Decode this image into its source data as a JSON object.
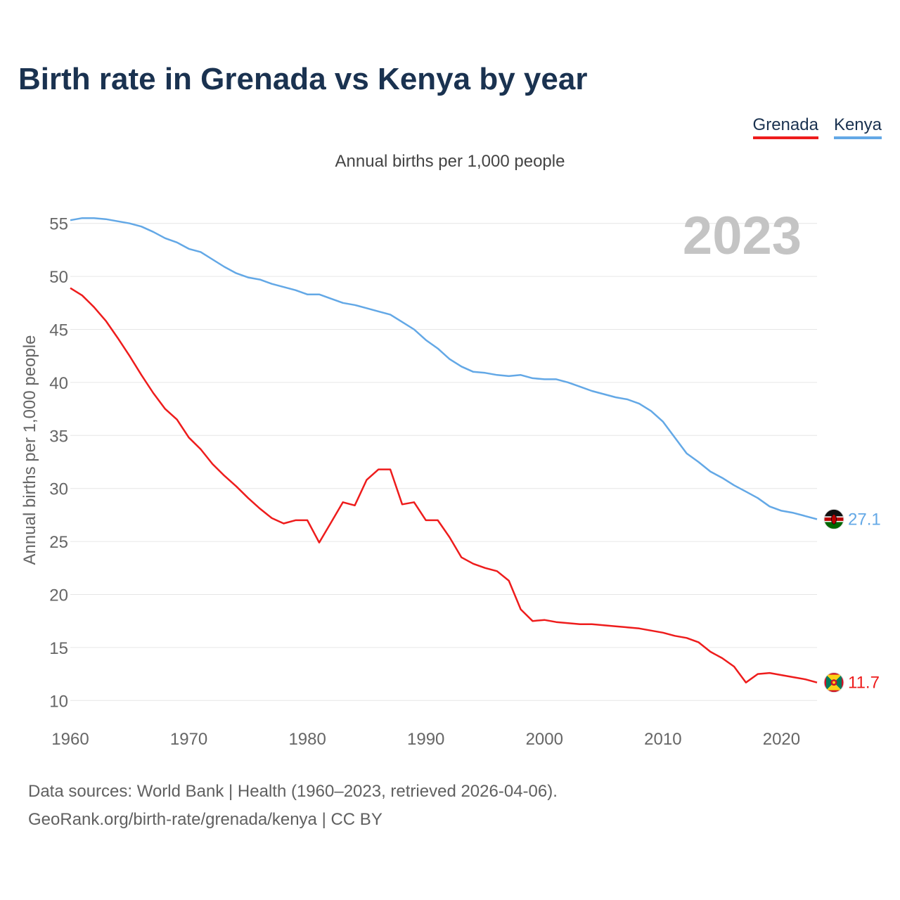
{
  "title": "Birth rate in Grenada vs Kenya by year",
  "subtitle": "Annual births per 1,000 people",
  "legend": [
    {
      "name": "Grenada",
      "color": "#ee1c1c"
    },
    {
      "name": "Kenya",
      "color": "#63a8e6"
    }
  ],
  "year_label": "2023",
  "source_line1": "Data sources: World Bank | Health (1960–2023, retrieved 2026-04-06).",
  "source_line2": "GeoRank.org/birth-rate/grenada/kenya | CC BY",
  "end_labels": {
    "grenada": "11.7",
    "kenya": "27.1"
  },
  "chart_data": {
    "type": "line",
    "title": "Birth rate in Grenada vs Kenya by year",
    "ylabel": "Annual births per 1,000 people",
    "xlabel": "",
    "xlim": [
      1960,
      2023
    ],
    "ylim": [
      7.5,
      57.5
    ],
    "x_ticks": [
      1960,
      1970,
      1980,
      1990,
      2000,
      2010,
      2020
    ],
    "y_ticks": [
      10,
      15,
      20,
      25,
      30,
      35,
      40,
      45,
      50,
      55
    ],
    "grid": true,
    "x": [
      1960,
      1961,
      1962,
      1963,
      1964,
      1965,
      1966,
      1967,
      1968,
      1969,
      1970,
      1971,
      1972,
      1973,
      1974,
      1975,
      1976,
      1977,
      1978,
      1979,
      1980,
      1981,
      1982,
      1983,
      1984,
      1985,
      1986,
      1987,
      1988,
      1989,
      1990,
      1991,
      1992,
      1993,
      1994,
      1995,
      1996,
      1997,
      1998,
      1999,
      2000,
      2001,
      2002,
      2003,
      2004,
      2005,
      2006,
      2007,
      2008,
      2009,
      2010,
      2011,
      2012,
      2013,
      2014,
      2015,
      2016,
      2017,
      2018,
      2019,
      2020,
      2021,
      2022,
      2023
    ],
    "series": [
      {
        "name": "Grenada",
        "color": "#ee1c1c",
        "values": [
          48.9,
          48.2,
          47.1,
          45.8,
          44.2,
          42.5,
          40.7,
          39.0,
          37.5,
          36.5,
          34.8,
          33.7,
          32.3,
          31.2,
          30.2,
          29.1,
          28.1,
          27.2,
          26.7,
          27.0,
          27.0,
          24.9,
          26.8,
          28.7,
          28.4,
          30.8,
          31.8,
          31.8,
          28.5,
          28.7,
          27.0,
          27.0,
          25.4,
          23.5,
          22.9,
          22.5,
          22.2,
          21.3,
          18.6,
          17.5,
          17.6,
          17.4,
          17.3,
          17.2,
          17.2,
          17.1,
          17.0,
          16.9,
          16.8,
          16.6,
          16.4,
          16.1,
          15.9,
          15.5,
          14.6,
          14.0,
          13.2,
          11.7,
          12.5,
          12.6,
          12.4,
          12.2,
          12.0,
          11.7
        ]
      },
      {
        "name": "Kenya",
        "color": "#63a8e6",
        "values": [
          55.3,
          55.5,
          55.5,
          55.4,
          55.2,
          55.0,
          54.7,
          54.2,
          53.6,
          53.2,
          52.6,
          52.3,
          51.6,
          50.9,
          50.3,
          49.9,
          49.7,
          49.3,
          49.0,
          48.7,
          48.3,
          48.3,
          47.9,
          47.5,
          47.3,
          47.0,
          46.7,
          46.4,
          45.7,
          45.0,
          44.0,
          43.2,
          42.2,
          41.5,
          41.0,
          40.9,
          40.7,
          40.6,
          40.7,
          40.4,
          40.3,
          40.3,
          40.0,
          39.6,
          39.2,
          38.9,
          38.6,
          38.4,
          38.0,
          37.3,
          36.3,
          34.8,
          33.3,
          32.5,
          31.6,
          31.0,
          30.3,
          29.7,
          29.1,
          28.3,
          27.9,
          27.7,
          27.4,
          27.1
        ]
      }
    ]
  }
}
